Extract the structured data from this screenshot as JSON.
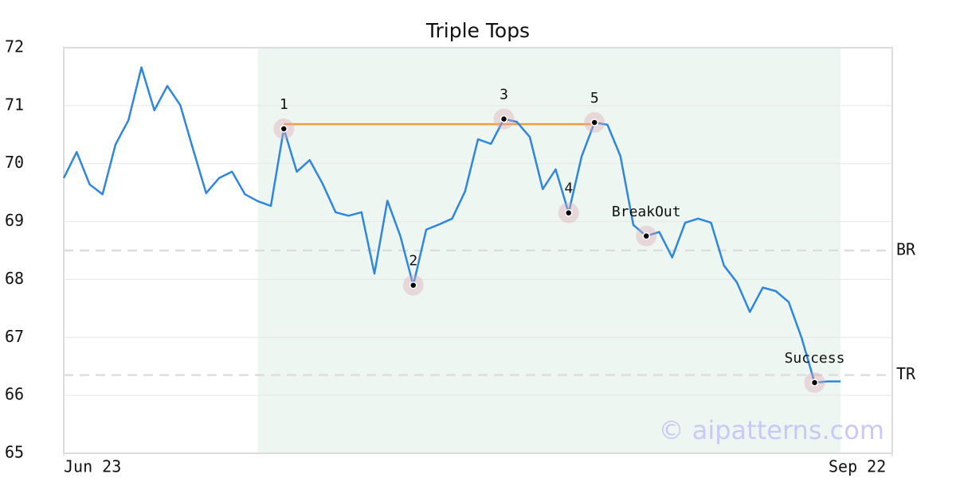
{
  "chart_data": {
    "type": "line",
    "title": "Triple Tops",
    "x": [
      0,
      1,
      2,
      3,
      4,
      5,
      6,
      7,
      8,
      9,
      10,
      11,
      12,
      13,
      14,
      15,
      16,
      17,
      18,
      19,
      20,
      21,
      22,
      23,
      24,
      25,
      26,
      27,
      28,
      29,
      30,
      31,
      32,
      33,
      34,
      35,
      36,
      37,
      38,
      39,
      40,
      41,
      42,
      43,
      44,
      45,
      46,
      47,
      48,
      49,
      50,
      51,
      52,
      53,
      54,
      55,
      56,
      57,
      58,
      59,
      60
    ],
    "series": [
      {
        "color": "#2e86de",
        "values": [
          69.75,
          70.2,
          69.64,
          69.47,
          70.33,
          70.75,
          71.66,
          70.92,
          71.34,
          71.01,
          70.24,
          69.49,
          69.75,
          69.86,
          69.47,
          69.35,
          69.27,
          70.6,
          69.86,
          70.06,
          69.65,
          69.16,
          69.1,
          69.16,
          68.1,
          69.36,
          68.75,
          67.9,
          68.86,
          68.95,
          69.05,
          69.52,
          70.42,
          70.34,
          70.77,
          70.72,
          70.46,
          69.56,
          69.9,
          69.15,
          70.12,
          70.71,
          70.67,
          70.13,
          68.94,
          68.75,
          68.82,
          68.38,
          68.98,
          69.05,
          68.98,
          68.24,
          67.95,
          67.44,
          67.86,
          67.8,
          67.61,
          66.99,
          66.22,
          66.24,
          66.24
        ]
      }
    ],
    "xlim": [
      0,
      64
    ],
    "xticks": [
      {
        "value": 0,
        "label": "Jun 23"
      },
      {
        "value": 64,
        "label": "Sep 22"
      }
    ],
    "ylim": [
      65,
      72
    ],
    "yticks": [
      65,
      66,
      67,
      68,
      69,
      70,
      71,
      72
    ],
    "grid": true,
    "pattern_region": {
      "start": 15,
      "end": 60,
      "color": "#eef6f2"
    },
    "resistance": {
      "x": [
        17,
        41
      ],
      "y": 70.68,
      "color": "#f39c3c"
    },
    "reference_lines": [
      {
        "label": "BR",
        "value": 68.5
      },
      {
        "label": "TR",
        "value": 66.35
      }
    ],
    "pattern_points": [
      {
        "x": 17,
        "y": 70.6,
        "label": "1"
      },
      {
        "x": 27,
        "y": 67.9,
        "label": "2"
      },
      {
        "x": 34,
        "y": 70.77,
        "label": "3"
      },
      {
        "x": 39,
        "y": 69.15,
        "label": "4"
      },
      {
        "x": 41,
        "y": 70.71,
        "label": "5"
      },
      {
        "x": 45,
        "y": 68.75,
        "label": "BreakOut"
      },
      {
        "x": 58,
        "y": 66.22,
        "label": "Success"
      }
    ],
    "watermark": "© aipatterns.com"
  }
}
